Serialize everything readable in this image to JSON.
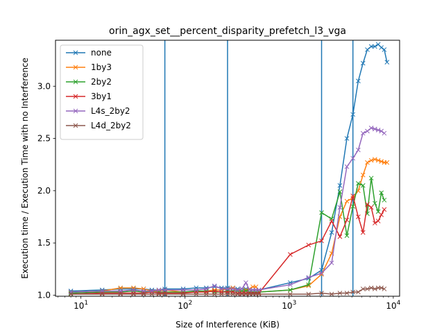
{
  "chart_data": {
    "type": "line",
    "title": "orin_agx_set__percent_disparity_prefetch_l3_vga",
    "xlabel": "Size of Interference (KiB)",
    "ylabel": "Execution time / Execution Time with no Interference",
    "xscale": "log",
    "xlim": [
      5.7,
      11500
    ],
    "ylim": [
      0.99,
      3.44
    ],
    "yticks": [
      "1.0",
      "1.5",
      "2.0",
      "2.5",
      "3.0"
    ],
    "xticks": [
      {
        "value": 10,
        "base": "10",
        "exp": "1"
      },
      {
        "value": 100,
        "base": "10",
        "exp": "2"
      },
      {
        "value": 1000,
        "base": "10",
        "exp": "3"
      },
      {
        "value": 10000,
        "base": "10",
        "exp": "4"
      }
    ],
    "vlines": [
      64,
      256,
      2048,
      4096
    ],
    "vline_color": "#1f77b4",
    "legend_position": "upper-left",
    "series": [
      {
        "name": "none",
        "color": "#1f77b4",
        "points": [
          [
            8,
            1.04
          ],
          [
            16,
            1.05
          ],
          [
            24,
            1.06
          ],
          [
            32,
            1.06
          ],
          [
            40,
            1.06
          ],
          [
            48,
            1.05
          ],
          [
            56,
            1.05
          ],
          [
            64,
            1.06
          ],
          [
            96,
            1.06
          ],
          [
            128,
            1.07
          ],
          [
            160,
            1.07
          ],
          [
            192,
            1.08
          ],
          [
            224,
            1.07
          ],
          [
            256,
            1.07
          ],
          [
            288,
            1.07
          ],
          [
            320,
            1.06
          ],
          [
            352,
            1.06
          ],
          [
            384,
            1.06
          ],
          [
            416,
            1.05
          ],
          [
            448,
            1.05
          ],
          [
            480,
            1.05
          ],
          [
            512,
            1.05
          ],
          [
            1024,
            1.12
          ],
          [
            1536,
            1.16
          ],
          [
            2048,
            1.24
          ],
          [
            2560,
            1.6
          ],
          [
            3072,
            2.05
          ],
          [
            3584,
            2.5
          ],
          [
            4096,
            2.73
          ],
          [
            4608,
            3.05
          ],
          [
            5120,
            3.22
          ],
          [
            5632,
            3.35
          ],
          [
            6144,
            3.38
          ],
          [
            6656,
            3.38
          ],
          [
            7168,
            3.4
          ],
          [
            7680,
            3.37
          ],
          [
            8192,
            3.35
          ],
          [
            8704,
            3.23
          ]
        ]
      },
      {
        "name": "1by3",
        "color": "#ff7f0e",
        "points": [
          [
            8,
            1.03
          ],
          [
            16,
            1.04
          ],
          [
            24,
            1.07
          ],
          [
            32,
            1.07
          ],
          [
            40,
            1.06
          ],
          [
            48,
            1.04
          ],
          [
            56,
            1.04
          ],
          [
            64,
            1.05
          ],
          [
            96,
            1.03
          ],
          [
            128,
            1.03
          ],
          [
            160,
            1.04
          ],
          [
            192,
            1.05
          ],
          [
            224,
            1.05
          ],
          [
            256,
            1.06
          ],
          [
            288,
            1.07
          ],
          [
            320,
            1.05
          ],
          [
            352,
            1.04
          ],
          [
            384,
            1.05
          ],
          [
            416,
            1.06
          ],
          [
            448,
            1.08
          ],
          [
            480,
            1.08
          ],
          [
            512,
            1.03
          ],
          [
            1024,
            1.05
          ],
          [
            1536,
            1.09
          ],
          [
            2048,
            1.2
          ],
          [
            2560,
            1.4
          ],
          [
            3072,
            1.75
          ],
          [
            3584,
            1.9
          ],
          [
            4096,
            1.93
          ],
          [
            4608,
            2.0
          ],
          [
            5120,
            2.15
          ],
          [
            5632,
            2.27
          ],
          [
            6144,
            2.29
          ],
          [
            6656,
            2.3
          ],
          [
            7168,
            2.29
          ],
          [
            7680,
            2.28
          ],
          [
            8192,
            2.27
          ],
          [
            8704,
            2.27
          ]
        ]
      },
      {
        "name": "2by2",
        "color": "#2ca02c",
        "points": [
          [
            8,
            1.02
          ],
          [
            16,
            1.03
          ],
          [
            24,
            1.03
          ],
          [
            32,
            1.04
          ],
          [
            40,
            1.03
          ],
          [
            48,
            1.03
          ],
          [
            56,
            1.03
          ],
          [
            64,
            1.03
          ],
          [
            96,
            1.03
          ],
          [
            128,
            1.04
          ],
          [
            160,
            1.04
          ],
          [
            192,
            1.03
          ],
          [
            224,
            1.03
          ],
          [
            256,
            1.04
          ],
          [
            288,
            1.04
          ],
          [
            320,
            1.04
          ],
          [
            352,
            1.04
          ],
          [
            384,
            1.04
          ],
          [
            416,
            1.03
          ],
          [
            448,
            1.03
          ],
          [
            480,
            1.03
          ],
          [
            512,
            1.03
          ],
          [
            1024,
            1.05
          ],
          [
            1536,
            1.1
          ],
          [
            2048,
            1.79
          ],
          [
            2560,
            1.73
          ],
          [
            3072,
            1.99
          ],
          [
            3584,
            1.57
          ],
          [
            4096,
            1.85
          ],
          [
            4608,
            2.07
          ],
          [
            5120,
            2.05
          ],
          [
            5632,
            1.78
          ],
          [
            6144,
            2.12
          ],
          [
            6656,
            1.88
          ],
          [
            7168,
            1.8
          ],
          [
            7680,
            1.98
          ],
          [
            8192,
            1.91
          ]
        ]
      },
      {
        "name": "3by1",
        "color": "#d62728",
        "points": [
          [
            8,
            1.01
          ],
          [
            16,
            1.02
          ],
          [
            24,
            1.02
          ],
          [
            32,
            1.02
          ],
          [
            40,
            1.02
          ],
          [
            48,
            1.03
          ],
          [
            56,
            1.02
          ],
          [
            64,
            1.02
          ],
          [
            96,
            1.02
          ],
          [
            128,
            1.03
          ],
          [
            160,
            1.03
          ],
          [
            192,
            1.04
          ],
          [
            224,
            1.03
          ],
          [
            256,
            1.03
          ],
          [
            288,
            1.03
          ],
          [
            320,
            1.02
          ],
          [
            352,
            1.02
          ],
          [
            384,
            1.02
          ],
          [
            416,
            1.02
          ],
          [
            448,
            1.02
          ],
          [
            480,
            1.02
          ],
          [
            512,
            1.02
          ],
          [
            1024,
            1.39
          ],
          [
            1536,
            1.48
          ],
          [
            2048,
            1.52
          ],
          [
            2560,
            1.71
          ],
          [
            3072,
            1.56
          ],
          [
            3584,
            1.72
          ],
          [
            4096,
            1.95
          ],
          [
            4608,
            1.75
          ],
          [
            5120,
            1.6
          ],
          [
            5632,
            1.87
          ],
          [
            6144,
            1.84
          ],
          [
            6656,
            1.69
          ],
          [
            7168,
            1.71
          ],
          [
            7680,
            1.77
          ],
          [
            8192,
            1.82
          ]
        ]
      },
      {
        "name": "L4s_2by2",
        "color": "#9467bd",
        "points": [
          [
            8,
            1.03
          ],
          [
            16,
            1.04
          ],
          [
            24,
            1.04
          ],
          [
            32,
            1.05
          ],
          [
            40,
            1.04
          ],
          [
            48,
            1.04
          ],
          [
            56,
            1.05
          ],
          [
            64,
            1.05
          ],
          [
            96,
            1.05
          ],
          [
            128,
            1.05
          ],
          [
            160,
            1.06
          ],
          [
            192,
            1.09
          ],
          [
            224,
            1.06
          ],
          [
            256,
            1.06
          ],
          [
            288,
            1.06
          ],
          [
            320,
            1.05
          ],
          [
            352,
            1.06
          ],
          [
            384,
            1.12
          ],
          [
            416,
            1.05
          ],
          [
            448,
            1.05
          ],
          [
            480,
            1.05
          ],
          [
            512,
            1.05
          ],
          [
            1024,
            1.1
          ],
          [
            1536,
            1.17
          ],
          [
            2048,
            1.21
          ],
          [
            2560,
            1.31
          ],
          [
            3072,
            1.84
          ],
          [
            3584,
            2.23
          ],
          [
            4096,
            2.31
          ],
          [
            4608,
            2.39
          ],
          [
            5120,
            2.55
          ],
          [
            5632,
            2.57
          ],
          [
            6144,
            2.6
          ],
          [
            6656,
            2.59
          ],
          [
            7168,
            2.58
          ],
          [
            7680,
            2.57
          ],
          [
            8192,
            2.55
          ]
        ]
      },
      {
        "name": "L4d_2by2",
        "color": "#8c564b",
        "points": [
          [
            8,
            1.01
          ],
          [
            16,
            1.01
          ],
          [
            24,
            1.01
          ],
          [
            32,
            1.01
          ],
          [
            40,
            1.01
          ],
          [
            48,
            1.01
          ],
          [
            56,
            1.01
          ],
          [
            64,
            1.01
          ],
          [
            96,
            1.01
          ],
          [
            128,
            1.01
          ],
          [
            160,
            1.01
          ],
          [
            192,
            1.01
          ],
          [
            224,
            1.01
          ],
          [
            256,
            1.01
          ],
          [
            288,
            1.01
          ],
          [
            320,
            1.01
          ],
          [
            352,
            1.01
          ],
          [
            384,
            1.01
          ],
          [
            416,
            1.01
          ],
          [
            448,
            1.01
          ],
          [
            480,
            1.01
          ],
          [
            512,
            1.01
          ],
          [
            1024,
            1.01
          ],
          [
            1536,
            1.01
          ],
          [
            2048,
            1.02
          ],
          [
            2560,
            1.01
          ],
          [
            3072,
            1.02
          ],
          [
            3584,
            1.02
          ],
          [
            4096,
            1.03
          ],
          [
            4608,
            1.03
          ],
          [
            5120,
            1.06
          ],
          [
            5632,
            1.06
          ],
          [
            6144,
            1.07
          ],
          [
            6656,
            1.06
          ],
          [
            7168,
            1.07
          ],
          [
            7680,
            1.07
          ],
          [
            8192,
            1.06
          ]
        ]
      }
    ]
  }
}
